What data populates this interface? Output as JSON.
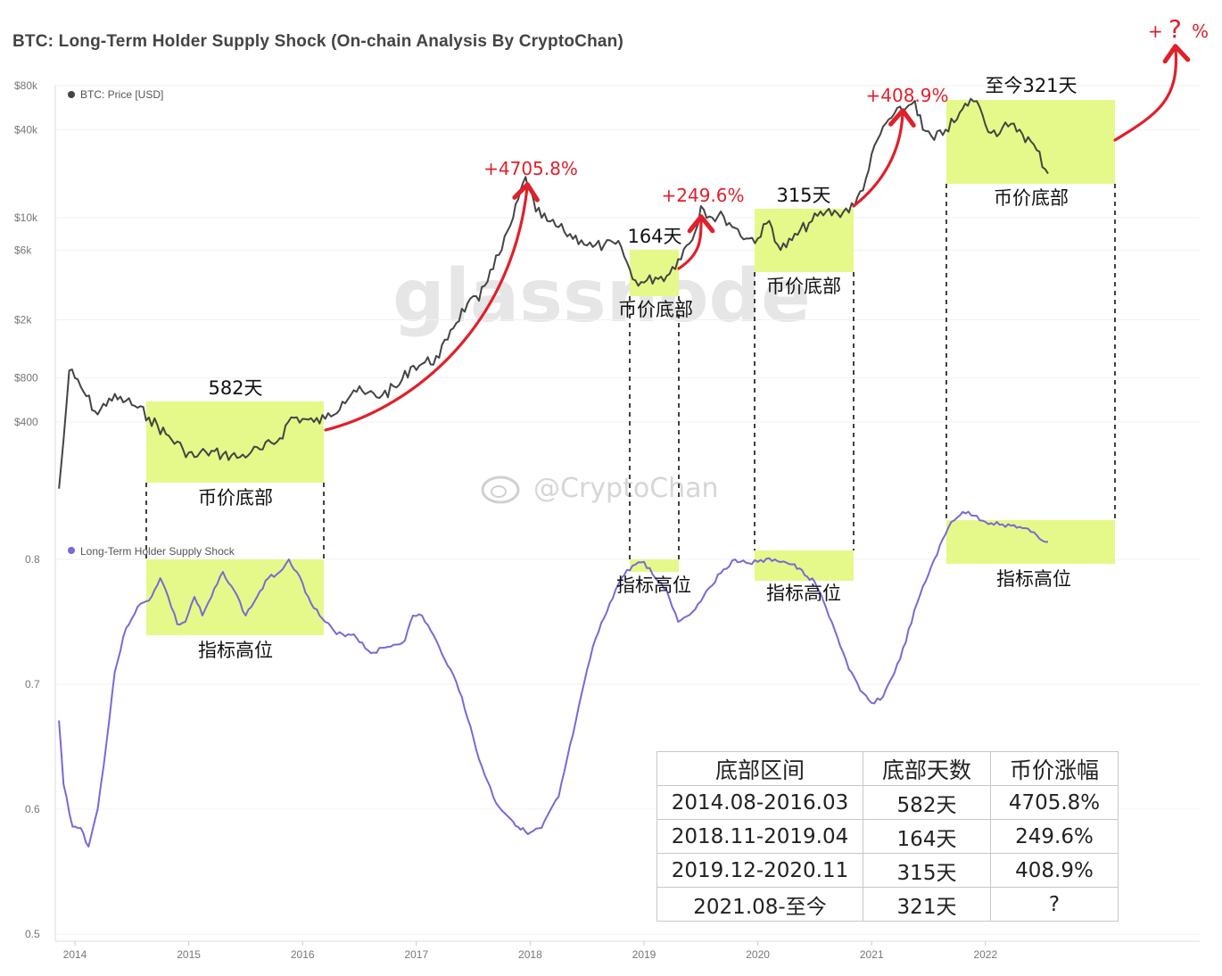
{
  "title": "BTC: Long-Term Holder Supply Shock (On-chain Analysis By CryptoChan)",
  "watermark": "glassnode",
  "weibo_watermark": "@CryptoChan",
  "chart_data": [
    {
      "type": "line",
      "series": [
        {
          "name": "BTC: Price [USD]",
          "color": "#444444",
          "x": [
            2013.86,
            2013.9,
            2013.95,
            2014.0,
            2014.1,
            2014.2,
            2014.3,
            2014.45,
            2014.55,
            2014.65,
            2014.8,
            2014.95,
            2015.05,
            2015.15,
            2015.3,
            2015.45,
            2015.55,
            2015.65,
            2015.8,
            2015.9,
            2016.0,
            2016.1,
            2016.2,
            2016.35,
            2016.45,
            2016.55,
            2016.7,
            2016.85,
            2016.95,
            2017.05,
            2017.2,
            2017.3,
            2017.45,
            2017.55,
            2017.65,
            2017.75,
            2017.85,
            2017.96,
            2018.05,
            2018.15,
            2018.3,
            2018.45,
            2018.55,
            2018.65,
            2018.8,
            2018.9,
            2019.0,
            2019.1,
            2019.2,
            2019.3,
            2019.45,
            2019.5,
            2019.6,
            2019.7,
            2019.8,
            2019.9,
            2020.0,
            2020.1,
            2020.2,
            2020.3,
            2020.45,
            2020.6,
            2020.7,
            2020.85,
            2020.95,
            2021.05,
            2021.15,
            2021.3,
            2021.38,
            2021.45,
            2021.55,
            2021.65,
            2021.75,
            2021.87,
            2021.95,
            2022.05,
            2022.2,
            2022.3,
            2022.45,
            2022.55
          ],
          "values": [
            140,
            300,
            900,
            800,
            600,
            450,
            580,
            560,
            500,
            430,
            330,
            260,
            230,
            250,
            240,
            230,
            250,
            260,
            310,
            430,
            420,
            400,
            420,
            550,
            660,
            620,
            610,
            720,
            950,
            1000,
            1100,
            1700,
            2600,
            2700,
            4400,
            6000,
            10000,
            19000,
            11000,
            9500,
            8000,
            7000,
            6300,
            6500,
            6300,
            3800,
            3600,
            3900,
            4000,
            5200,
            8000,
            12000,
            10000,
            10200,
            8500,
            7200,
            7200,
            9500,
            6000,
            7000,
            9200,
            11000,
            10700,
            12000,
            18500,
            34000,
            47000,
            56000,
            63000,
            40000,
            34000,
            40000,
            47000,
            65000,
            57000,
            38000,
            42000,
            40000,
            29000,
            20000
          ]
        }
      ],
      "ylabel": "",
      "ylim": [
        100,
        80000
      ],
      "yscale": "log",
      "yticks": [
        "$400",
        "$800",
        "$2k",
        "$6k",
        "$10k",
        "$40k",
        "$80k"
      ]
    },
    {
      "type": "line",
      "series": [
        {
          "name": "Long-Term Holder Supply Shock",
          "color": "#7b68d6",
          "x": [
            2013.86,
            2013.9,
            2013.98,
            2014.05,
            2014.12,
            2014.2,
            2014.28,
            2014.35,
            2014.45,
            2014.55,
            2014.65,
            2014.75,
            2014.82,
            2014.9,
            2014.97,
            2015.05,
            2015.12,
            2015.2,
            2015.3,
            2015.4,
            2015.5,
            2015.6,
            2015.7,
            2015.8,
            2015.88,
            2015.95,
            2016.05,
            2016.15,
            2016.3,
            2016.45,
            2016.6,
            2016.75,
            2016.9,
            2016.97,
            2017.05,
            2017.2,
            2017.3,
            2017.4,
            2017.55,
            2017.7,
            2017.85,
            2017.98,
            2018.1,
            2018.25,
            2018.4,
            2018.55,
            2018.7,
            2018.8,
            2018.9,
            2019.0,
            2019.1,
            2019.2,
            2019.3,
            2019.45,
            2019.55,
            2019.7,
            2019.8,
            2019.92,
            2020.0,
            2020.15,
            2020.3,
            2020.5,
            2020.65,
            2020.8,
            2020.9,
            2021.0,
            2021.1,
            2021.25,
            2021.4,
            2021.55,
            2021.7,
            2021.8,
            2021.9,
            2022.0,
            2022.15,
            2022.3,
            2022.4,
            2022.5,
            2022.55
          ],
          "values": [
            0.671,
            0.62,
            0.586,
            0.585,
            0.57,
            0.6,
            0.655,
            0.71,
            0.745,
            0.762,
            0.767,
            0.785,
            0.77,
            0.748,
            0.75,
            0.77,
            0.755,
            0.77,
            0.79,
            0.775,
            0.755,
            0.77,
            0.785,
            0.79,
            0.8,
            0.79,
            0.77,
            0.755,
            0.74,
            0.74,
            0.725,
            0.73,
            0.735,
            0.755,
            0.755,
            0.73,
            0.712,
            0.69,
            0.64,
            0.605,
            0.59,
            0.58,
            0.585,
            0.61,
            0.67,
            0.73,
            0.765,
            0.785,
            0.795,
            0.798,
            0.785,
            0.775,
            0.75,
            0.76,
            0.775,
            0.792,
            0.8,
            0.797,
            0.798,
            0.8,
            0.796,
            0.782,
            0.75,
            0.712,
            0.695,
            0.685,
            0.69,
            0.72,
            0.765,
            0.8,
            0.83,
            0.838,
            0.835,
            0.83,
            0.828,
            0.826,
            0.822,
            0.815,
            0.814
          ]
        }
      ],
      "ylabel": "",
      "ylim": [
        0.5,
        0.85
      ],
      "yticks": [
        "0.5",
        "0.6",
        "0.7",
        "0.8"
      ]
    }
  ],
  "x_ticks": [
    "2014",
    "2015",
    "2016",
    "2017",
    "2018",
    "2019",
    "2020",
    "2021",
    "2022"
  ],
  "legend": {
    "price": "BTC: Price [USD]",
    "lths": "Long-Term Holder Supply Shock"
  },
  "annotations": {
    "days": [
      "582天",
      "164天",
      "315天",
      "至今321天"
    ],
    "price_bottom": "币价底部",
    "indicator_high": "指标高位",
    "gains": [
      "+4705.8%",
      "+249.6%",
      "+408.9%"
    ],
    "future_plus": "+",
    "future_q": "?",
    "future_pct": "%"
  },
  "table": {
    "headers": [
      "底部区间",
      "底部天数",
      "币价涨幅"
    ],
    "rows": [
      [
        "2014.08-2016.03",
        "582天",
        "4705.8%"
      ],
      [
        "2018.11-2019.04",
        "164天",
        "249.6%"
      ],
      [
        "2019.12-2020.11",
        "315天",
        "408.9%"
      ],
      [
        "2021.08-至今",
        "321天",
        "?"
      ]
    ]
  },
  "colors": {
    "highlight": "#e5f98a",
    "arrow": "#e0202a",
    "price": "#444444",
    "lths": "#7b68d6"
  }
}
